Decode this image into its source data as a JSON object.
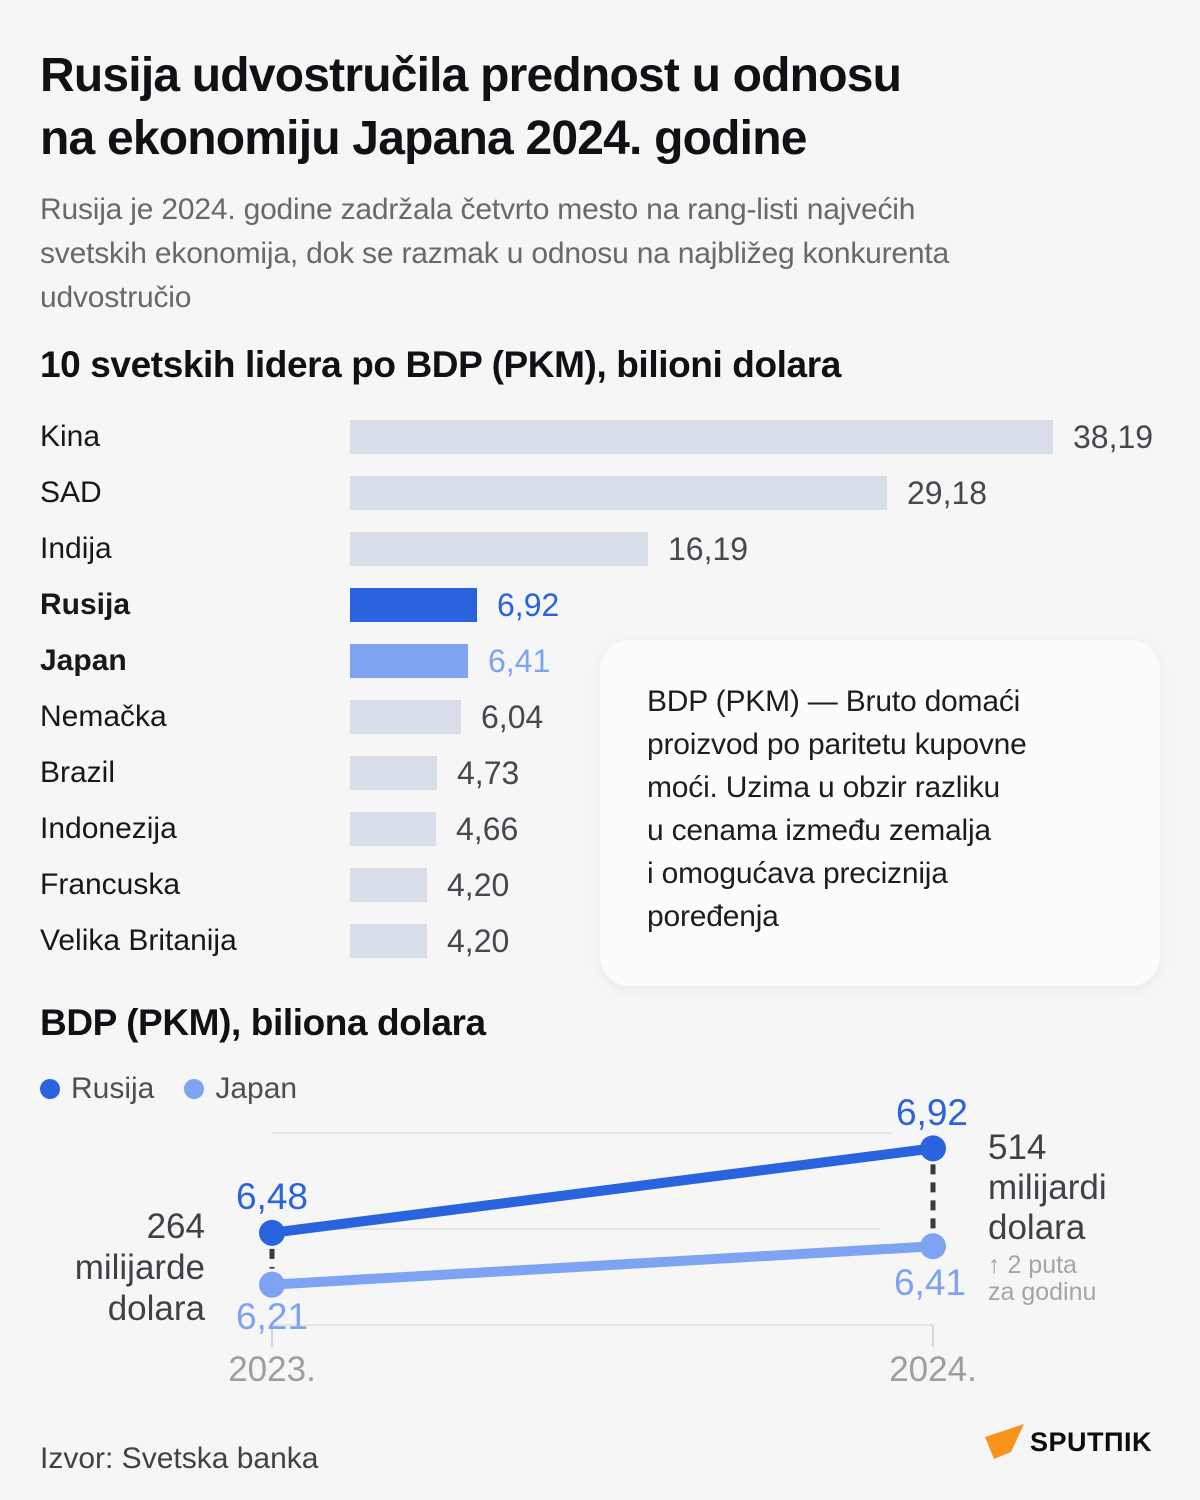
{
  "colors": {
    "russia": "#2963DE",
    "japan": "#7EA3F2",
    "bar_default": "#D8DEE9",
    "grid": "#E5E5E7",
    "tick": "#D6D6D8",
    "dash_connector": "#3A3A3C",
    "logo_orange": "#F8941D"
  },
  "header": {
    "title_lines": [
      "Rusija udvostručila prednost u odnosu",
      "na ekonomiju Japana 2024. godine"
    ],
    "subtitle_lines": [
      "Rusija je 2024. godine zadržala četvrto mesto na rang-listi najvećih",
      "svetskih ekonomija, dok se razmak u odnosu na najbližeg konkurenta",
      "udvostručio"
    ]
  },
  "info_box": {
    "lines": [
      "BDP (PKM) — Bruto domaći",
      "proizvod po paritetu kupovne",
      "moći. Uzima u obzir razliku",
      "u cenama između zemalja",
      "i omogućava preciznija",
      "poređenja"
    ]
  },
  "chart_data": [
    {
      "type": "bar",
      "title": "10 svetskih lidera po BDP (PKM), bilioni dolara",
      "categories": [
        "Kina",
        "SAD",
        "Indija",
        "Rusija",
        "Japan",
        "Nemačka",
        "Brazil",
        "Indonezija",
        "Francuska",
        "Velika Britanija"
      ],
      "values": [
        38.19,
        29.18,
        16.19,
        6.92,
        6.41,
        6.04,
        4.73,
        4.66,
        4.2,
        4.2
      ],
      "value_labels": [
        "38,19",
        "29,18",
        "16,19",
        "6,92",
        "6,41",
        "6,04",
        "4,73",
        "4,66",
        "4,20",
        "4,20"
      ],
      "highlight": [
        null,
        null,
        null,
        "russia",
        "japan",
        null,
        null,
        null,
        null,
        null
      ],
      "xlim": [
        0,
        38.19
      ],
      "grid": false,
      "legend_position": "none"
    },
    {
      "type": "line",
      "title": "BDP (PKM), biliona dolara",
      "x": [
        "2023.",
        "2024."
      ],
      "series": [
        {
          "name": "Rusija",
          "color_key": "russia",
          "values": [
            6.48,
            6.92
          ],
          "value_labels": [
            "6,48",
            "6,92"
          ]
        },
        {
          "name": "Japan",
          "color_key": "japan",
          "values": [
            6.21,
            6.41
          ],
          "value_labels": [
            "6,21",
            "6,41"
          ]
        }
      ],
      "ylim": [
        6.0,
        7.0
      ],
      "gridline_values": [
        7.0,
        6.5,
        6.0
      ],
      "legend": [
        "Rusija",
        "Japan"
      ],
      "legend_position": "top-left",
      "annotations": {
        "left": {
          "lines": [
            "264",
            "milijarde",
            "dolara"
          ]
        },
        "right": {
          "lines": [
            "514",
            "milijardi",
            "dolara"
          ]
        },
        "right_note": {
          "lines": [
            "↑ 2 puta",
            "za godinu"
          ]
        }
      }
    }
  ],
  "footer": {
    "source": "Izvor: Svetska banka",
    "logo_text": "SPUTΠIK"
  }
}
